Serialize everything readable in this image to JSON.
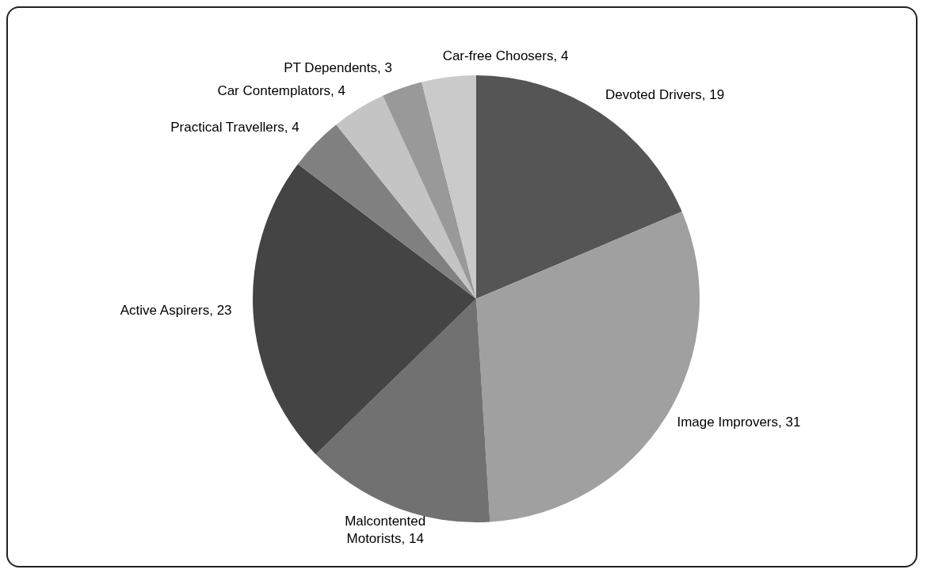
{
  "chart_data": {
    "type": "pie",
    "categories": [
      "Devoted Drivers",
      "Image Improvers",
      "Malcontented Motorists",
      "Active Aspirers",
      "Practical Travellers",
      "Car Contemplators",
      "PT Dependents",
      "Car-free Choosers"
    ],
    "values": [
      19,
      31,
      14,
      23,
      4,
      4,
      3,
      4
    ],
    "colors": [
      "#555555",
      "#a0a0a0",
      "#717171",
      "#444444",
      "#808080",
      "#c4c4c4",
      "#999999",
      "#cacaca"
    ],
    "value_labels": [
      ", 19",
      ", 31",
      ", 14",
      ", 23",
      ", 4",
      ", 4",
      ", 3",
      ", 4"
    ]
  }
}
